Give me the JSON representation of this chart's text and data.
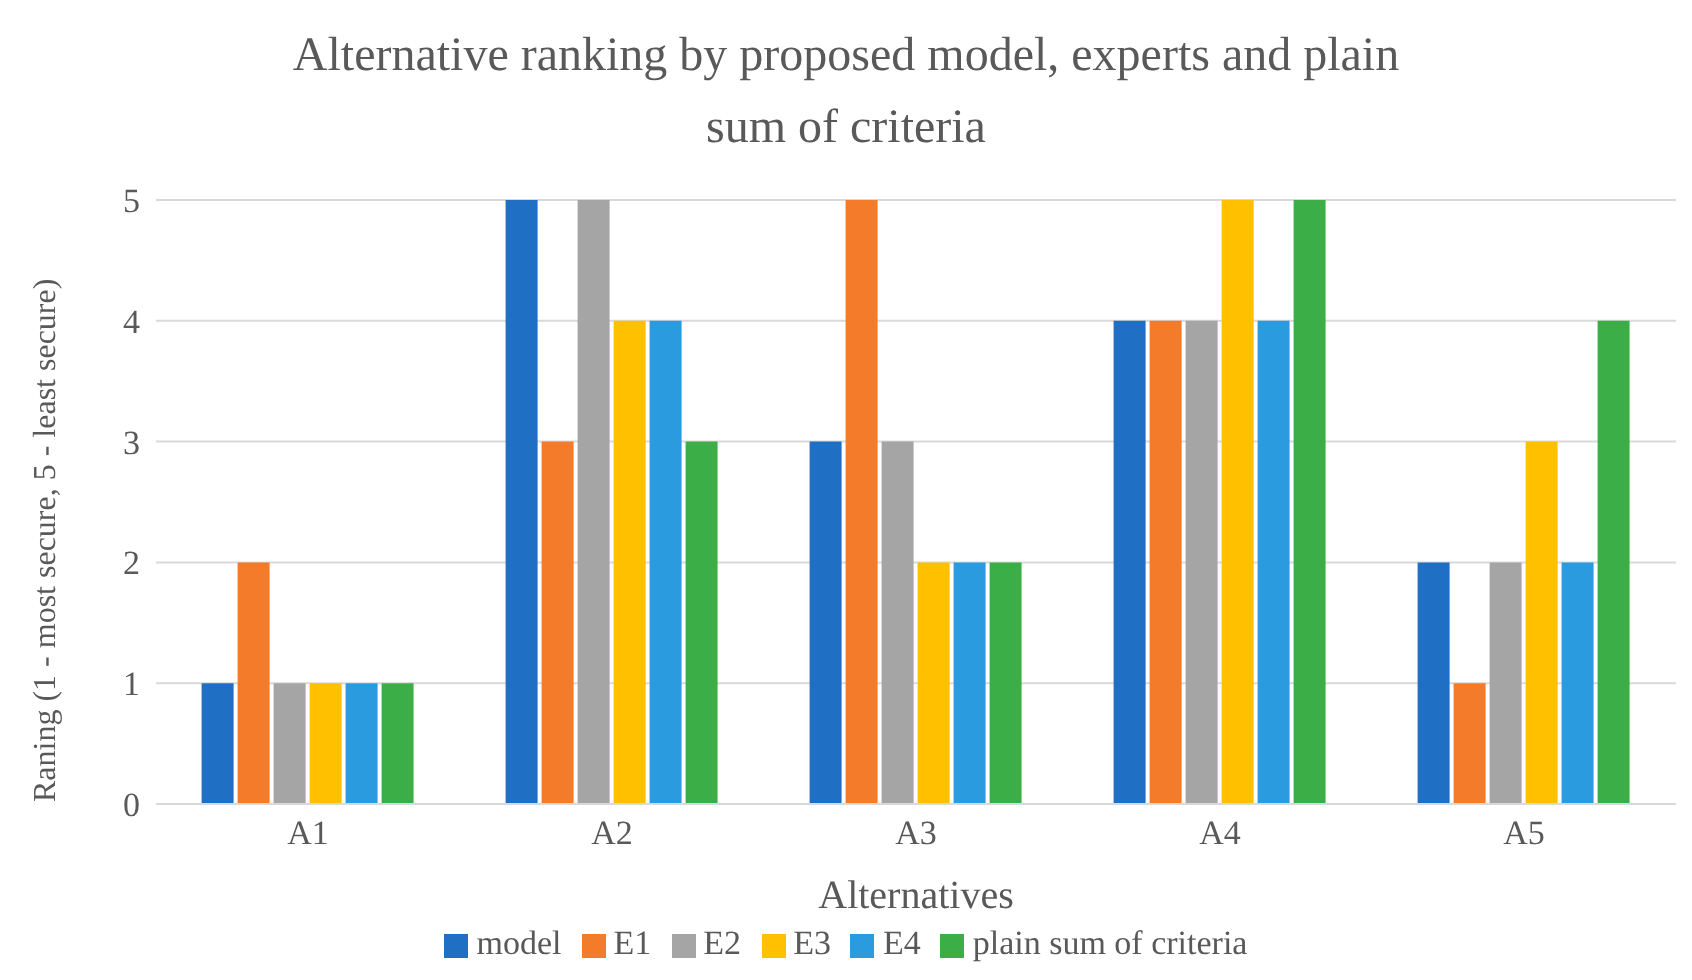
{
  "chart_data": {
    "type": "bar",
    "title": "Alternative ranking by proposed model, experts and plain sum of criteria",
    "xlabel": "Alternatives",
    "ylabel": "Raning (1 - most secure, 5 - least secure)",
    "categories": [
      "A1",
      "A2",
      "A3",
      "A4",
      "A5"
    ],
    "series": [
      {
        "name": "model",
        "color": "#1f6fc5",
        "values": [
          1,
          5,
          3,
          4,
          2
        ]
      },
      {
        "name": "E1",
        "color": "#f47b2a",
        "values": [
          2,
          3,
          5,
          4,
          1
        ]
      },
      {
        "name": "E2",
        "color": "#a5a5a5",
        "values": [
          1,
          5,
          3,
          4,
          2
        ]
      },
      {
        "name": "E3",
        "color": "#ffc000",
        "values": [
          1,
          4,
          2,
          5,
          3
        ]
      },
      {
        "name": "E4",
        "color": "#2b9be0",
        "values": [
          1,
          4,
          2,
          4,
          2
        ]
      },
      {
        "name": "plain sum of criteria",
        "color": "#3cae48",
        "values": [
          1,
          3,
          2,
          5,
          4
        ]
      }
    ],
    "ylim": [
      0,
      5
    ],
    "yticks": [
      0,
      1,
      2,
      3,
      4,
      5
    ],
    "grid": "y",
    "legend": "bottom"
  }
}
